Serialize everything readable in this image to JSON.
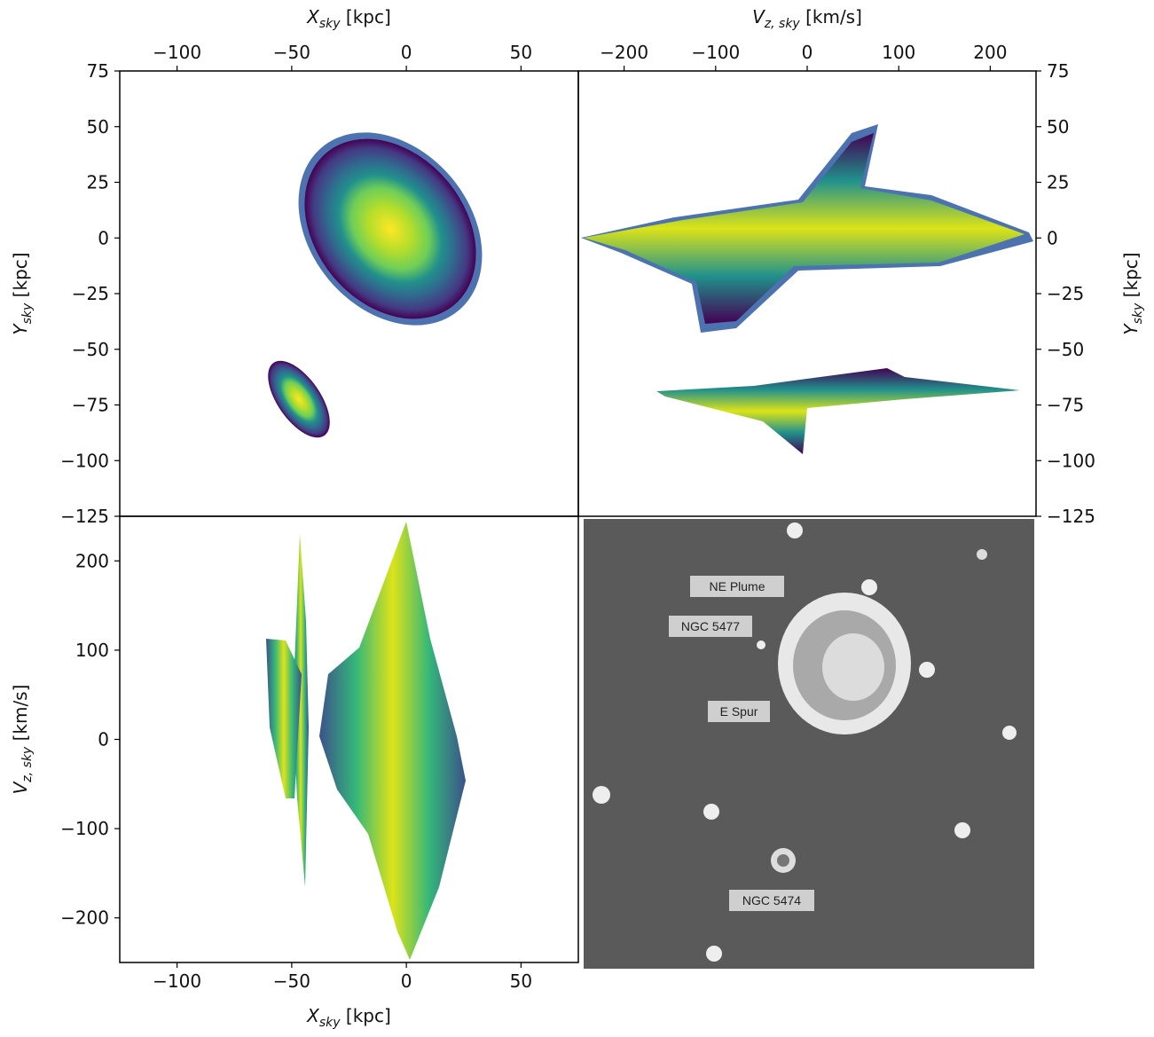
{
  "chart_data": [
    {
      "type": "density",
      "xlabel": {
        "symbol": "X",
        "sub": "sky",
        "unit": " [kpc]"
      },
      "ylabel": {
        "symbol": "Y",
        "sub": "sky",
        "unit": " [kpc]"
      },
      "xlim": [
        -125,
        75
      ],
      "ylim": [
        -125,
        75
      ],
      "xticks": [
        {
          "value": -100,
          "label": "−100"
        },
        {
          "value": -50,
          "label": "−50"
        },
        0,
        50
      ],
      "yticks": [
        {
          "value": -125,
          "label": "−125"
        },
        {
          "value": -100,
          "label": "−100"
        },
        {
          "value": -75,
          "label": "−75"
        },
        {
          "value": -50,
          "label": "−50"
        },
        {
          "value": -25,
          "label": "−25"
        },
        0,
        25,
        50,
        75
      ]
    },
    {
      "type": "density",
      "xlabel": {
        "symbol": "V",
        "sub": "z, sky",
        "unit": " [km/s]"
      },
      "ylabel": {
        "symbol": "Y",
        "sub": "sky",
        "unit": " [kpc]"
      },
      "xlim": [
        -250,
        250
      ],
      "ylim": [
        -125,
        75
      ],
      "xticks": [
        {
          "value": -200,
          "label": "−200"
        },
        {
          "value": -100,
          "label": "−100"
        },
        0,
        100,
        200
      ],
      "yticks": [
        {
          "value": -125,
          "label": "−125"
        },
        {
          "value": -100,
          "label": "−100"
        },
        {
          "value": -75,
          "label": "−75"
        },
        {
          "value": -50,
          "label": "−50"
        },
        {
          "value": -25,
          "label": "−25"
        },
        0,
        25,
        50,
        75
      ]
    },
    {
      "type": "density",
      "xlabel": {
        "symbol": "X",
        "sub": "sky",
        "unit": " [kpc]"
      },
      "ylabel": {
        "symbol": "V",
        "sub": "z, sky",
        "unit": " [km/s]"
      },
      "xlim": [
        -125,
        75
      ],
      "ylim": [
        -250,
        250
      ],
      "xticks": [
        {
          "value": -100,
          "label": "−100"
        },
        {
          "value": -50,
          "label": "−50"
        },
        0,
        50
      ],
      "yticks": [
        {
          "value": -200,
          "label": "−200"
        },
        {
          "value": -100,
          "label": "−100"
        },
        0,
        100,
        200
      ]
    }
  ],
  "image": {
    "labels": [
      "NE Plume",
      "NGC 5477",
      "E Spur",
      "NGC 5474"
    ]
  }
}
